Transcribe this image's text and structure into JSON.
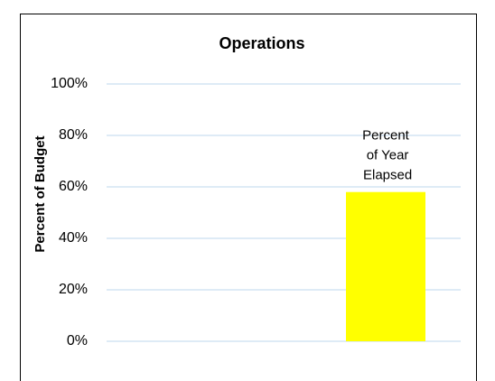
{
  "chart_data": {
    "type": "bar",
    "title": "Operations",
    "y_label": "Percent of Budget",
    "categories": [
      null,
      null
    ],
    "values": [
      null,
      58
    ],
    "color": "#ffff00",
    "annotation": "Percent of Year Elapsed",
    "ylim": [
      0,
      100
    ],
    "yticks": [
      {
        "value": 0,
        "label": "0%"
      },
      {
        "value": 20,
        "label": "20%"
      },
      {
        "value": 40,
        "label": "40%"
      },
      {
        "value": 60,
        "label": "60%"
      },
      {
        "value": 80,
        "label": "80%"
      },
      {
        "value": 100,
        "label": "100%"
      }
    ],
    "grid": true
  }
}
